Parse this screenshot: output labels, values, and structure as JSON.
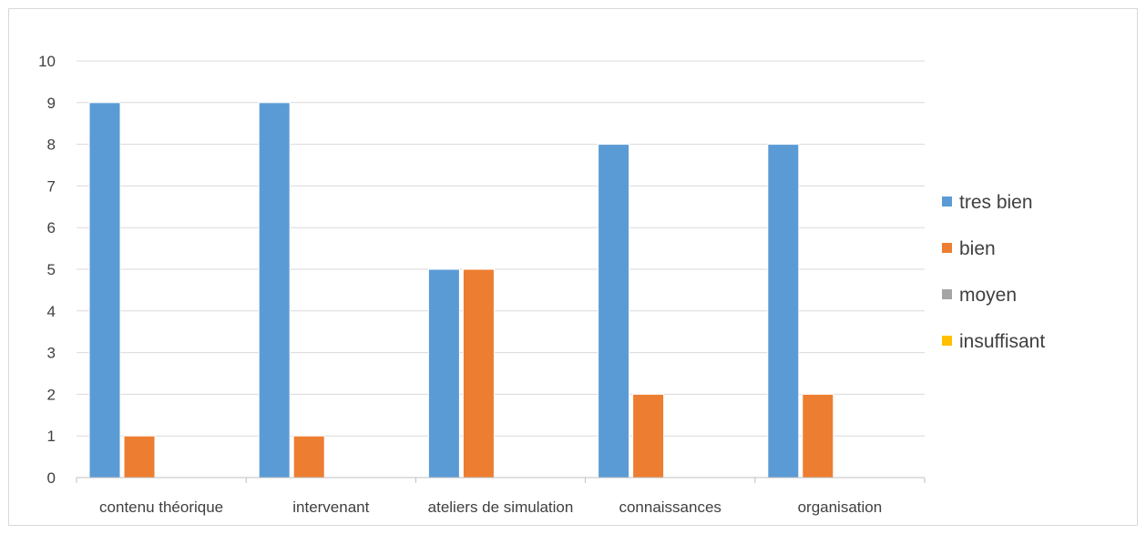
{
  "chart_data": {
    "type": "bar",
    "categories": [
      "contenu théorique",
      "intervenant",
      "ateliers de simulation",
      "connaissances",
      "organisation"
    ],
    "series": [
      {
        "name": "tres bien",
        "color": "#5b9bd5",
        "values": [
          9,
          9,
          5,
          8,
          8
        ]
      },
      {
        "name": "bien",
        "color": "#ed7d31",
        "values": [
          1,
          1,
          5,
          2,
          2
        ]
      },
      {
        "name": "moyen",
        "color": "#a5a5a5",
        "values": [
          0,
          0,
          0,
          0,
          0
        ]
      },
      {
        "name": "insuffisant",
        "color": "#ffc000",
        "values": [
          0,
          0,
          0,
          0,
          0
        ]
      }
    ],
    "yticks": [
      "0",
      "1",
      "2",
      "3",
      "4",
      "5",
      "6",
      "7",
      "8",
      "9",
      "10"
    ],
    "ylim": [
      0,
      10
    ],
    "grid": true,
    "legend_position": "right"
  }
}
